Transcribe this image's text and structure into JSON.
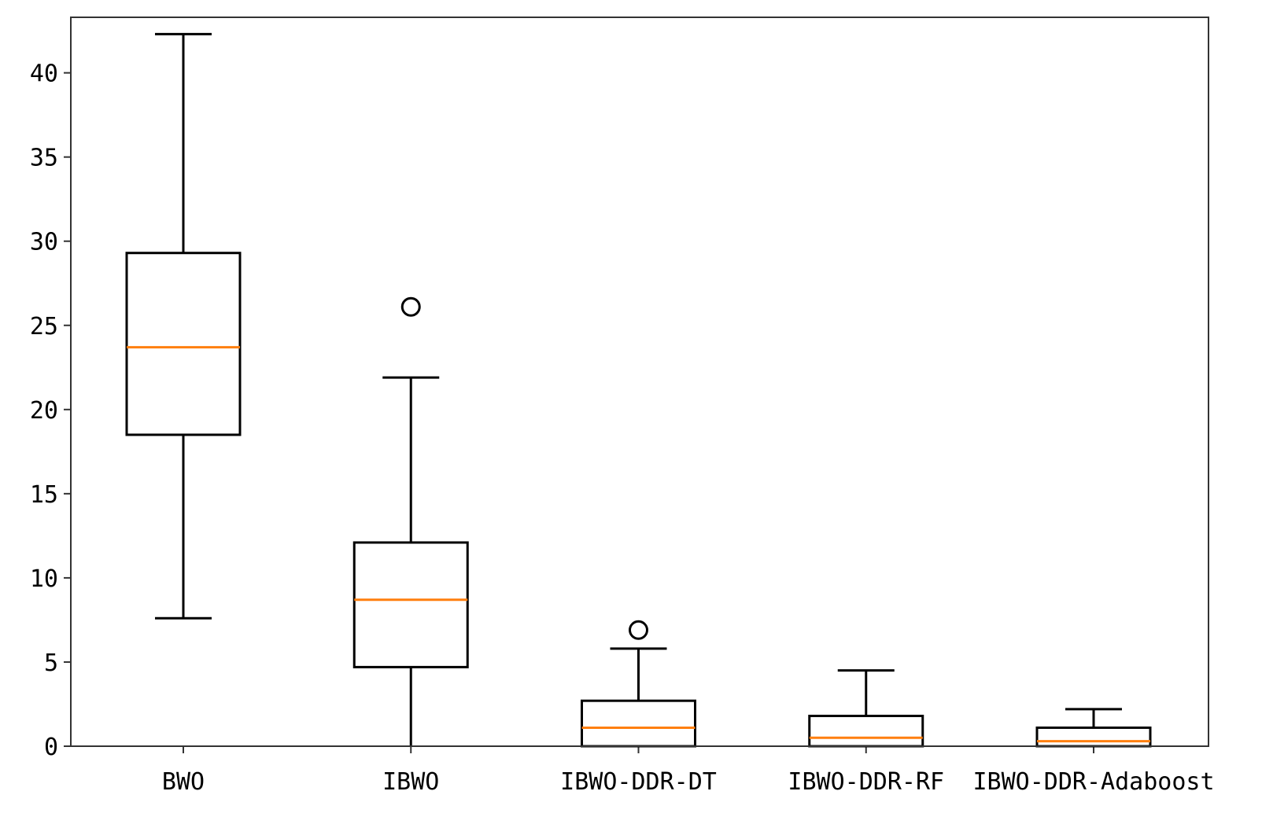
{
  "chart_data": {
    "type": "box",
    "title": "",
    "xlabel": "",
    "ylabel": "",
    "ylim": [
      0,
      43.3
    ],
    "yticks": [
      0,
      5,
      10,
      15,
      20,
      25,
      30,
      35,
      40
    ],
    "grid": false,
    "legend": "none",
    "categories": [
      "BWO",
      "IBWO",
      "IBWO-DDR-DT",
      "IBWO-DDR-RF",
      "IBWO-DDR-Adaboost"
    ],
    "boxes": [
      {
        "name": "BWO",
        "whisker_low": 7.6,
        "q1": 18.5,
        "median": 23.7,
        "q3": 29.3,
        "whisker_high": 42.3,
        "outliers": []
      },
      {
        "name": "IBWO",
        "whisker_low": 0.0,
        "q1": 4.7,
        "median": 8.7,
        "q3": 12.1,
        "whisker_high": 21.9,
        "outliers": [
          26.1
        ]
      },
      {
        "name": "IBWO-DDR-DT",
        "whisker_low": 0.0,
        "q1": 0.0,
        "median": 1.1,
        "q3": 2.7,
        "whisker_high": 5.8,
        "outliers": [
          6.9
        ]
      },
      {
        "name": "IBWO-DDR-RF",
        "whisker_low": 0.0,
        "q1": 0.0,
        "median": 0.5,
        "q3": 1.8,
        "whisker_high": 4.5,
        "outliers": []
      },
      {
        "name": "IBWO-DDR-Adaboost",
        "whisker_low": 0.0,
        "q1": 0.0,
        "median": 0.3,
        "q3": 1.1,
        "whisker_high": 2.2,
        "outliers": []
      }
    ],
    "colors": {
      "box": "#000000",
      "median": "#ff7f0e",
      "axes": "#333333"
    }
  }
}
